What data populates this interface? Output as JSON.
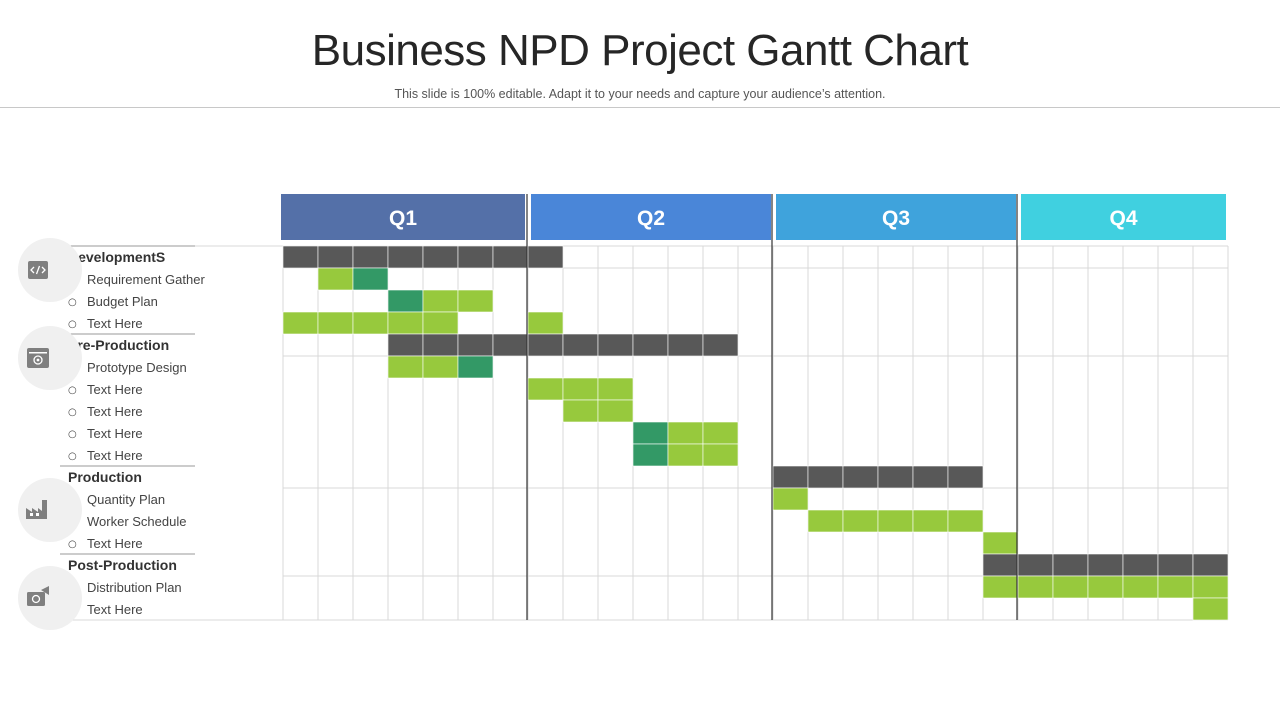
{
  "title": "Business NPD Project Gantt Chart",
  "subtitle": "This slide is 100% editable. Adapt it to your needs and capture your audience’s attention.",
  "colors": {
    "summary_bar": "#585858",
    "task_bar_light": "#97c93d",
    "task_bar_dark": "#339966",
    "grid": "#d9d9d9",
    "icon_circle": "#f0f0f0",
    "icon_fill": "#7f7f7f"
  },
  "quarters": [
    {
      "label": "Q1",
      "color": "#5470a8"
    },
    {
      "label": "Q2",
      "color": "#4a86d8"
    },
    {
      "label": "Q3",
      "color": "#3fa3dc"
    },
    {
      "label": "Q4",
      "color": "#40d0e0"
    }
  ],
  "chart_data": {
    "type": "gantt",
    "columns_per_quarter": [
      7,
      7,
      7,
      6
    ],
    "groups": [
      {
        "name": "DevelopmentS",
        "icon": "code-icon",
        "summary": [
          0,
          8
        ],
        "tasks": [
          {
            "label": "Requirement  Gather",
            "cells": [
              [
                1,
                "light"
              ],
              [
                2,
                "dark"
              ]
            ]
          },
          {
            "label": "Budget Plan",
            "cells": [
              [
                3,
                "dark"
              ],
              [
                4,
                "light"
              ],
              [
                5,
                "light"
              ]
            ]
          },
          {
            "label": "Text Here",
            "cells": [
              [
                0,
                "light"
              ],
              [
                1,
                "light"
              ],
              [
                2,
                "light"
              ],
              [
                3,
                "light"
              ],
              [
                4,
                "light"
              ],
              [
                7,
                "light"
              ]
            ]
          }
        ]
      },
      {
        "name": "Pre-Production",
        "icon": "monitor-icon",
        "summary": [
          3,
          13
        ],
        "tasks": [
          {
            "label": "Prototype Design",
            "cells": [
              [
                3,
                "light"
              ],
              [
                4,
                "light"
              ],
              [
                5,
                "dark"
              ]
            ]
          },
          {
            "label": "Text Here",
            "cells": [
              [
                7,
                "light"
              ],
              [
                8,
                "light"
              ],
              [
                9,
                "light"
              ]
            ]
          },
          {
            "label": "Text Here",
            "cells": [
              [
                8,
                "light"
              ],
              [
                9,
                "light"
              ]
            ]
          },
          {
            "label": "Text Here",
            "cells": [
              [
                10,
                "dark"
              ],
              [
                11,
                "light"
              ],
              [
                12,
                "light"
              ]
            ]
          },
          {
            "label": "Text Here",
            "cells": [
              [
                10,
                "dark"
              ],
              [
                11,
                "light"
              ],
              [
                12,
                "light"
              ]
            ]
          }
        ]
      },
      {
        "name": "Production",
        "icon": "factory-icon",
        "summary": [
          14,
          20
        ],
        "tasks": [
          {
            "label": "Quantity Plan",
            "cells": [
              [
                14,
                "light"
              ]
            ]
          },
          {
            "label": "Worker Schedule",
            "cells": [
              [
                15,
                "light"
              ],
              [
                16,
                "light"
              ],
              [
                17,
                "light"
              ],
              [
                18,
                "light"
              ],
              [
                19,
                "light"
              ]
            ]
          },
          {
            "label": "Text Here",
            "cells": [
              [
                20,
                "light"
              ]
            ]
          }
        ]
      },
      {
        "name": "Post-Production",
        "icon": "megaphone-icon",
        "summary": [
          20,
          27
        ],
        "tasks": [
          {
            "label": "Distribution Plan",
            "cells": [
              [
                20,
                "light"
              ],
              [
                21,
                "light"
              ],
              [
                22,
                "light"
              ],
              [
                23,
                "light"
              ],
              [
                24,
                "light"
              ],
              [
                25,
                "light"
              ],
              [
                26,
                "light"
              ]
            ]
          },
          {
            "label": "Text Here",
            "cells": [
              [
                26,
                "light"
              ]
            ]
          }
        ]
      }
    ]
  }
}
